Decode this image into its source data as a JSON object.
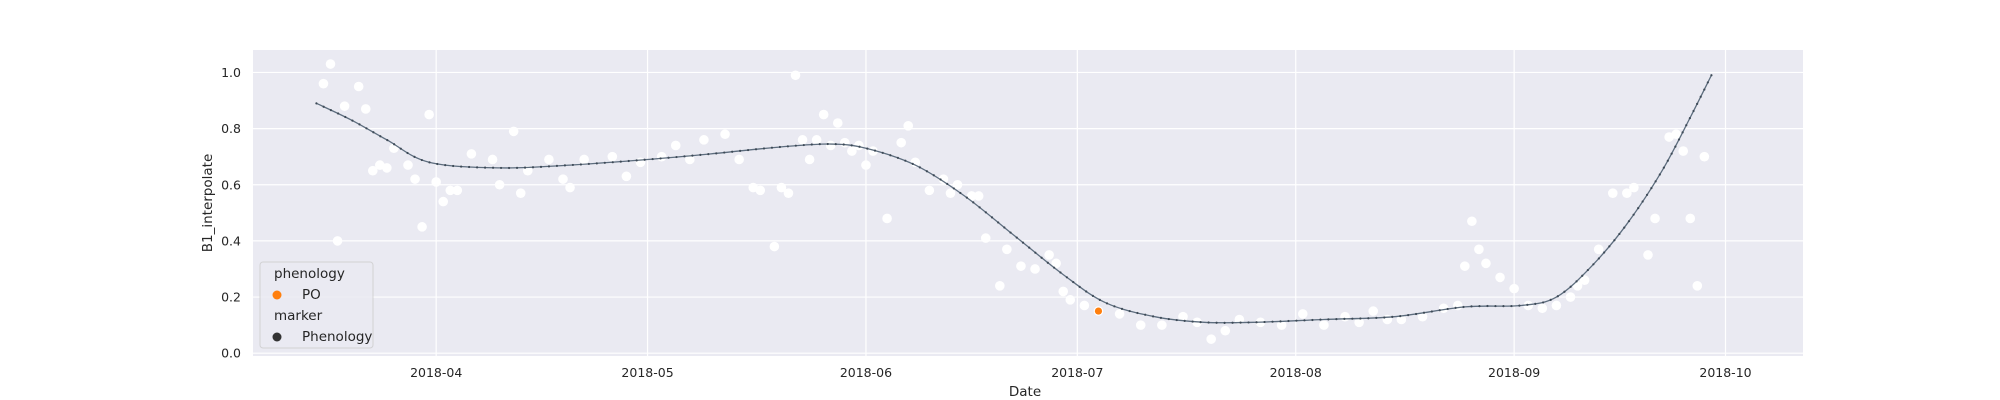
{
  "chart_data": {
    "type": "scatter",
    "xlabel": "Date",
    "ylabel": "B1_interpolate",
    "xlim": [
      "2018-03-06",
      "2018-10-12"
    ],
    "ylim": [
      -0.01,
      1.08
    ],
    "grid": true,
    "x_ticks": [
      "2018-04-01",
      "2018-05-01",
      "2018-06-01",
      "2018-07-01",
      "2018-08-01",
      "2018-09-01",
      "2018-10-01"
    ],
    "x_tick_labels": [
      "2018-04",
      "2018-05",
      "2018-06",
      "2018-07",
      "2018-08",
      "2018-09",
      "2018-10"
    ],
    "y_ticks": [
      0.0,
      0.2,
      0.4,
      0.6,
      0.8,
      1.0
    ],
    "y_tick_labels": [
      "0.0",
      "0.2",
      "0.4",
      "0.6",
      "0.8",
      "1.0"
    ],
    "colors": {
      "background": "#eaeaf2",
      "grid": "#ffffff",
      "curve": "#5d6d7e",
      "raw_points": "#ffffff",
      "phenology": "#ff7f0e",
      "legend_marker": "#333333"
    },
    "legend": {
      "position": "lower-left",
      "title_1": "phenology",
      "entries_1": [
        {
          "label": "PO",
          "color": "#ff7f0e"
        }
      ],
      "title_2": "marker",
      "entries_2": [
        {
          "label": "Phenology",
          "color": "#333333"
        }
      ]
    },
    "curve": {
      "x": [
        "2018-03-15",
        "2018-03-20",
        "2018-03-25",
        "2018-03-31",
        "2018-04-10",
        "2018-04-20",
        "2018-05-01",
        "2018-05-10",
        "2018-05-20",
        "2018-05-27",
        "2018-06-01",
        "2018-06-08",
        "2018-06-15",
        "2018-06-22",
        "2018-06-29",
        "2018-07-05",
        "2018-07-12",
        "2018-07-19",
        "2018-07-26",
        "2018-08-05",
        "2018-08-15",
        "2018-08-25",
        "2018-09-02",
        "2018-09-07",
        "2018-09-12",
        "2018-09-17",
        "2018-09-22",
        "2018-09-26",
        "2018-09-29"
      ],
      "y": [
        0.89,
        0.83,
        0.76,
        0.68,
        0.66,
        0.67,
        0.69,
        0.71,
        0.735,
        0.745,
        0.73,
        0.67,
        0.56,
        0.42,
        0.28,
        0.18,
        0.13,
        0.11,
        0.11,
        0.12,
        0.13,
        0.165,
        0.17,
        0.2,
        0.31,
        0.46,
        0.65,
        0.84,
        0.99
      ]
    },
    "raw_points": {
      "x": [
        "2018-03-16",
        "2018-03-17",
        "2018-03-18",
        "2018-03-19",
        "2018-03-21",
        "2018-03-22",
        "2018-03-23",
        "2018-03-24",
        "2018-03-25",
        "2018-03-26",
        "2018-03-28",
        "2018-03-29",
        "2018-03-30",
        "2018-03-31",
        "2018-04-01",
        "2018-04-02",
        "2018-04-03",
        "2018-04-04",
        "2018-04-06",
        "2018-04-09",
        "2018-04-10",
        "2018-04-12",
        "2018-04-13",
        "2018-04-14",
        "2018-04-17",
        "2018-04-19",
        "2018-04-20",
        "2018-04-22",
        "2018-04-26",
        "2018-04-28",
        "2018-04-30",
        "2018-05-03",
        "2018-05-05",
        "2018-05-07",
        "2018-05-09",
        "2018-05-12",
        "2018-05-14",
        "2018-05-16",
        "2018-05-17",
        "2018-05-19",
        "2018-05-20",
        "2018-05-21",
        "2018-05-22",
        "2018-05-23",
        "2018-05-24",
        "2018-05-25",
        "2018-05-26",
        "2018-05-27",
        "2018-05-28",
        "2018-05-29",
        "2018-05-30",
        "2018-05-31",
        "2018-06-01",
        "2018-06-02",
        "2018-06-04",
        "2018-06-06",
        "2018-06-07",
        "2018-06-08",
        "2018-06-10",
        "2018-06-12",
        "2018-06-13",
        "2018-06-14",
        "2018-06-16",
        "2018-06-17",
        "2018-06-18",
        "2018-06-20",
        "2018-06-21",
        "2018-06-23",
        "2018-06-25",
        "2018-06-27",
        "2018-06-28",
        "2018-06-29",
        "2018-06-30",
        "2018-07-02",
        "2018-07-04",
        "2018-07-07",
        "2018-07-10",
        "2018-07-13",
        "2018-07-16",
        "2018-07-18",
        "2018-07-20",
        "2018-07-22",
        "2018-07-24",
        "2018-07-27",
        "2018-07-30",
        "2018-08-02",
        "2018-08-05",
        "2018-08-08",
        "2018-08-10",
        "2018-08-12",
        "2018-08-14",
        "2018-08-16",
        "2018-08-19",
        "2018-08-22",
        "2018-08-24",
        "2018-08-25",
        "2018-08-26",
        "2018-08-27",
        "2018-08-28",
        "2018-08-30",
        "2018-09-01",
        "2018-09-03",
        "2018-09-05",
        "2018-09-07",
        "2018-09-09",
        "2018-09-10",
        "2018-09-11",
        "2018-09-13",
        "2018-09-15",
        "2018-09-17",
        "2018-09-18",
        "2018-09-20",
        "2018-09-21",
        "2018-09-23",
        "2018-09-24",
        "2018-09-25",
        "2018-09-26",
        "2018-09-27",
        "2018-09-28"
      ],
      "y": [
        0.96,
        1.03,
        0.4,
        0.88,
        0.95,
        0.87,
        0.65,
        0.67,
        0.66,
        0.73,
        0.67,
        0.62,
        0.45,
        0.85,
        0.61,
        0.54,
        0.58,
        0.58,
        0.71,
        0.69,
        0.6,
        0.79,
        0.57,
        0.65,
        0.69,
        0.62,
        0.59,
        0.69,
        0.7,
        0.63,
        0.68,
        0.7,
        0.74,
        0.69,
        0.76,
        0.78,
        0.69,
        0.59,
        0.58,
        0.38,
        0.59,
        0.57,
        0.99,
        0.76,
        0.69,
        0.76,
        0.85,
        0.74,
        0.82,
        0.75,
        0.72,
        0.74,
        0.67,
        0.72,
        0.48,
        0.75,
        0.81,
        0.68,
        0.58,
        0.62,
        0.57,
        0.6,
        0.56,
        0.56,
        0.41,
        0.24,
        0.37,
        0.31,
        0.3,
        0.35,
        0.32,
        0.22,
        0.19,
        0.17,
        0.15,
        0.14,
        0.1,
        0.1,
        0.13,
        0.11,
        0.05,
        0.08,
        0.12,
        0.11,
        0.1,
        0.14,
        0.1,
        0.13,
        0.11,
        0.15,
        0.12,
        0.12,
        0.13,
        0.16,
        0.17,
        0.31,
        0.47,
        0.37,
        0.32,
        0.27,
        0.23,
        0.17,
        0.16,
        0.17,
        0.2,
        0.24,
        0.26,
        0.37,
        0.57,
        0.57,
        0.59,
        0.35,
        0.48,
        0.77,
        0.78,
        0.72,
        0.48,
        0.24,
        0.7
      ]
    },
    "phenology_points": {
      "x": [
        "2018-07-04"
      ],
      "y": [
        0.15
      ],
      "label": "PO"
    }
  }
}
